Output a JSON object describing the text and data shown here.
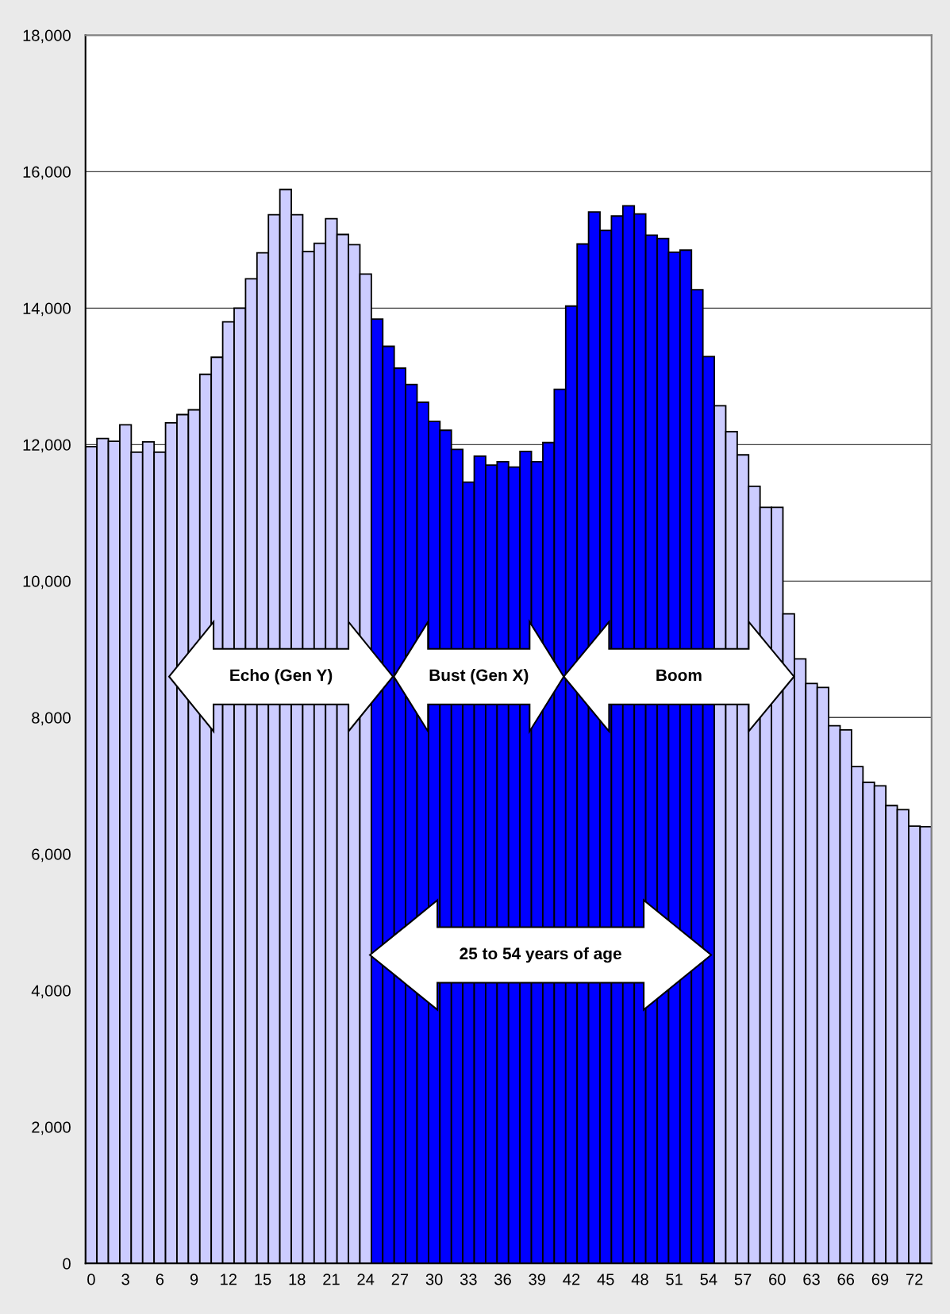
{
  "chart_data": {
    "type": "bar",
    "x": [
      0,
      1,
      2,
      3,
      4,
      5,
      6,
      7,
      8,
      9,
      10,
      11,
      12,
      13,
      14,
      15,
      16,
      17,
      18,
      19,
      20,
      21,
      22,
      23,
      24,
      25,
      26,
      27,
      28,
      29,
      30,
      31,
      32,
      33,
      34,
      35,
      36,
      37,
      38,
      39,
      40,
      41,
      42,
      43,
      44,
      45,
      46,
      47,
      48,
      49,
      50,
      51,
      52,
      53,
      54,
      55,
      56,
      57,
      58,
      59,
      60,
      61,
      62,
      63,
      64,
      65,
      66,
      67,
      68,
      69,
      70,
      71,
      72,
      73
    ],
    "values": [
      11970,
      12090,
      12050,
      12290,
      11890,
      12040,
      11890,
      12320,
      12440,
      12510,
      13030,
      13280,
      13800,
      14000,
      14430,
      14810,
      15370,
      15740,
      15370,
      14830,
      14950,
      15310,
      15080,
      14930,
      14500,
      13840,
      13440,
      13120,
      12880,
      12620,
      12340,
      12210,
      11930,
      11450,
      11830,
      11700,
      11750,
      11670,
      11900,
      11750,
      12030,
      12810,
      14030,
      14940,
      15410,
      15140,
      15350,
      15500,
      15380,
      15070,
      15020,
      14820,
      14850,
      14270,
      13290,
      12570,
      12190,
      11850,
      11390,
      11080,
      11080,
      9520,
      8860,
      8500,
      8440,
      7880,
      7820,
      7280,
      7050,
      7000,
      6710,
      6650,
      6410,
      6400
    ],
    "colors": [
      "#ccccff",
      "#ccccff",
      "#ccccff",
      "#ccccff",
      "#ccccff",
      "#ccccff",
      "#ccccff",
      "#ccccff",
      "#ccccff",
      "#ccccff",
      "#ccccff",
      "#ccccff",
      "#ccccff",
      "#ccccff",
      "#ccccff",
      "#ccccff",
      "#ccccff",
      "#ccccff",
      "#ccccff",
      "#ccccff",
      "#ccccff",
      "#ccccff",
      "#ccccff",
      "#ccccff",
      "#ccccff",
      "#0000ff",
      "#0000ff",
      "#0000ff",
      "#0000ff",
      "#0000ff",
      "#0000ff",
      "#0000ff",
      "#0000ff",
      "#0000ff",
      "#0000ff",
      "#0000ff",
      "#0000ff",
      "#0000ff",
      "#0000ff",
      "#0000ff",
      "#0000ff",
      "#0000ff",
      "#0000ff",
      "#0000ff",
      "#0000ff",
      "#0000ff",
      "#0000ff",
      "#0000ff",
      "#0000ff",
      "#0000ff",
      "#0000ff",
      "#0000ff",
      "#0000ff",
      "#0000ff",
      "#0000ff",
      "#ccccff",
      "#ccccff",
      "#ccccff",
      "#ccccff",
      "#ccccff",
      "#ccccff",
      "#ccccff",
      "#ccccff",
      "#ccccff",
      "#ccccff",
      "#ccccff",
      "#ccccff",
      "#ccccff",
      "#ccccff",
      "#ccccff",
      "#ccccff",
      "#ccccff",
      "#ccccff",
      "#ccccff"
    ],
    "xlim": [
      -0.5,
      73.5
    ],
    "xticks": [
      0,
      3,
      6,
      9,
      12,
      15,
      18,
      21,
      24,
      27,
      30,
      33,
      36,
      39,
      42,
      45,
      48,
      51,
      54,
      57,
      60,
      63,
      66,
      69,
      72
    ],
    "ylim": [
      0,
      18000
    ],
    "yticks": [
      0,
      {
        "value": 2000,
        "label": "2,000"
      },
      {
        "value": 4000,
        "label": "4,000"
      },
      {
        "value": 6000,
        "label": "6,000"
      },
      {
        "value": 8000,
        "label": "8,000"
      },
      {
        "value": 10000,
        "label": "10,000"
      },
      {
        "value": 12000,
        "label": "12,000"
      },
      {
        "value": 14000,
        "label": "14,000"
      },
      {
        "value": 16000,
        "label": "16,000"
      },
      {
        "value": 18000,
        "label": "18,000"
      }
    ],
    "grid": "y",
    "annotations": [
      {
        "text": "Echo (Gen Y)",
        "x": 16.6,
        "y": 8600
      },
      {
        "text": "Bust (Gen X)",
        "x": 33.9,
        "y": 8600
      },
      {
        "text": "Boom",
        "x": 51.4,
        "y": 8600
      },
      {
        "text": "25 to 54 years of age",
        "x": 39.3,
        "y": 4520
      }
    ]
  }
}
